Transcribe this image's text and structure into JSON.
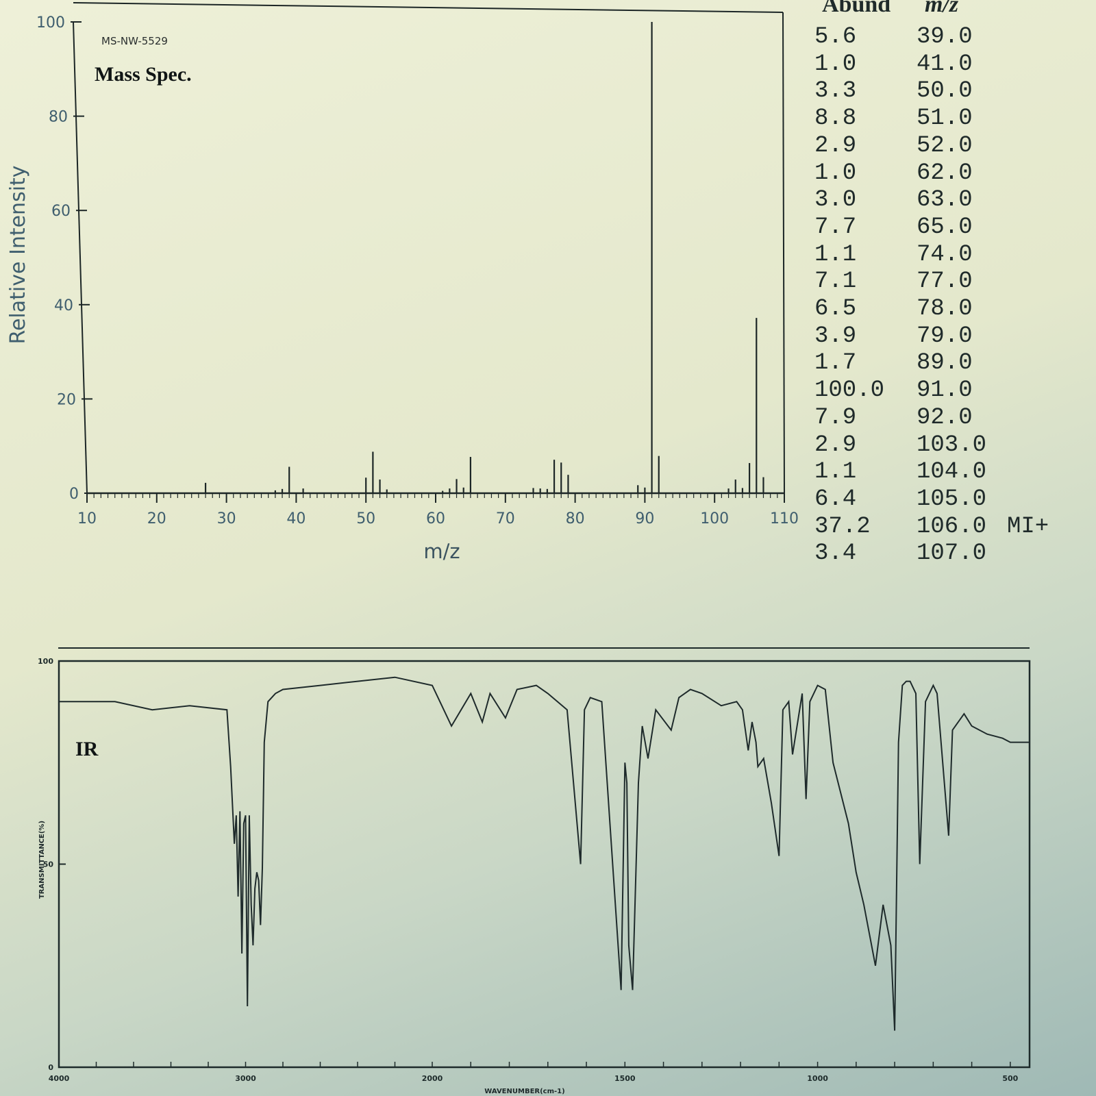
{
  "ms": {
    "sample_id": "MS-NW-5529",
    "title": "Mass Spec.",
    "table": {
      "header_abund": "Abund",
      "header_mz": "m/z",
      "rows": [
        {
          "abund": "5.6",
          "mz": "39.0",
          "note": ""
        },
        {
          "abund": "1.0",
          "mz": "41.0",
          "note": ""
        },
        {
          "abund": "3.3",
          "mz": "50.0",
          "note": ""
        },
        {
          "abund": "8.8",
          "mz": "51.0",
          "note": ""
        },
        {
          "abund": "2.9",
          "mz": "52.0",
          "note": ""
        },
        {
          "abund": "1.0",
          "mz": "62.0",
          "note": ""
        },
        {
          "abund": "3.0",
          "mz": "63.0",
          "note": ""
        },
        {
          "abund": "7.7",
          "mz": "65.0",
          "note": ""
        },
        {
          "abund": "1.1",
          "mz": "74.0",
          "note": ""
        },
        {
          "abund": "7.1",
          "mz": "77.0",
          "note": ""
        },
        {
          "abund": "6.5",
          "mz": "78.0",
          "note": ""
        },
        {
          "abund": "3.9",
          "mz": "79.0",
          "note": ""
        },
        {
          "abund": "1.7",
          "mz": "89.0",
          "note": ""
        },
        {
          "abund": "100.0",
          "mz": "91.0",
          "note": ""
        },
        {
          "abund": "7.9",
          "mz": "92.0",
          "note": ""
        },
        {
          "abund": "2.9",
          "mz": "103.0",
          "note": ""
        },
        {
          "abund": "1.1",
          "mz": "104.0",
          "note": ""
        },
        {
          "abund": "6.4",
          "mz": "105.0",
          "note": ""
        },
        {
          "abund": "37.2",
          "mz": "106.0",
          "note": "MI+"
        },
        {
          "abund": "3.4",
          "mz": "107.0",
          "note": ""
        }
      ]
    }
  },
  "ir": {
    "title": "IR"
  },
  "chart_data": [
    {
      "type": "bar",
      "title": "Mass Spec.",
      "xlabel": "m/z",
      "ylabel": "Relative Intensity",
      "xlim": [
        10,
        110
      ],
      "ylim": [
        0,
        100
      ],
      "xticks": [
        10,
        20,
        30,
        40,
        50,
        60,
        70,
        80,
        90,
        100,
        110
      ],
      "yticks": [
        0,
        20,
        40,
        60,
        80,
        100
      ],
      "grid": false,
      "x": [
        27,
        37,
        38,
        39,
        41,
        50,
        51,
        52,
        53,
        61,
        62,
        63,
        64,
        65,
        74,
        75,
        76,
        77,
        78,
        79,
        89,
        90,
        91,
        92,
        102,
        103,
        104,
        105,
        106,
        107
      ],
      "values": [
        2.2,
        0.6,
        0.9,
        5.6,
        1.0,
        3.3,
        8.8,
        2.9,
        0.8,
        0.5,
        1.0,
        3.0,
        1.2,
        7.7,
        1.1,
        1.0,
        0.9,
        7.1,
        6.5,
        3.9,
        1.7,
        1.2,
        100.0,
        7.9,
        1.0,
        2.9,
        1.1,
        6.4,
        37.2,
        3.4
      ]
    },
    {
      "type": "line",
      "title": "IR",
      "xlabel": "WAVENUMBER(cm-1)",
      "ylabel": "TRANSMITTANCE(%)",
      "xlim": [
        4000,
        450
      ],
      "ylim": [
        0,
        100
      ],
      "xticks": [
        "4000",
        "3000",
        "2000",
        "1500",
        "1000",
        "500"
      ],
      "yticks": [
        "0",
        "50",
        "100"
      ],
      "grid": false,
      "series": [
        {
          "x": [
            4000,
            3700,
            3500,
            3300,
            3100,
            3080,
            3060,
            3050,
            3040,
            3030,
            3020,
            3010,
            3000,
            2990,
            2980,
            2970,
            2960,
            2950,
            2940,
            2930,
            2920,
            2910,
            2900,
            2880,
            2860,
            2840,
            2800,
            2600,
            2400,
            2200,
            2000,
            1950,
            1900,
            1870,
            1850,
            1810,
            1780,
            1730,
            1700,
            1650,
            1615,
            1605,
            1590,
            1560,
            1510,
            1500,
            1495,
            1490,
            1480,
            1465,
            1455,
            1440,
            1420,
            1380,
            1360,
            1330,
            1300,
            1250,
            1210,
            1195,
            1180,
            1170,
            1160,
            1155,
            1140,
            1120,
            1100,
            1090,
            1075,
            1065,
            1040,
            1030,
            1020,
            1000,
            980,
            960,
            920,
            900,
            880,
            850,
            830,
            810,
            800,
            790,
            780,
            770,
            760,
            745,
            735,
            720,
            700,
            690,
            660,
            650,
            620,
            600,
            560,
            520,
            500,
            460,
            450
          ],
          "values": [
            90,
            90,
            88,
            89,
            88,
            74,
            55,
            62,
            42,
            63,
            28,
            60,
            62,
            15,
            62,
            40,
            30,
            44,
            48,
            46,
            35,
            49,
            80,
            90,
            91,
            92,
            93,
            94,
            95,
            96,
            94,
            84,
            92,
            85,
            92,
            86,
            93,
            94,
            92,
            88,
            50,
            88,
            91,
            90,
            19,
            75,
            70,
            30,
            19,
            70,
            84,
            76,
            88,
            83,
            91,
            93,
            92,
            89,
            90,
            88,
            78,
            85,
            80,
            74,
            76,
            65,
            52,
            88,
            90,
            77,
            92,
            66,
            90,
            94,
            93,
            75,
            60,
            48,
            40,
            25,
            40,
            30,
            9,
            80,
            94,
            95,
            95,
            92,
            50,
            90,
            94,
            92,
            57,
            83,
            87,
            84,
            82,
            81,
            80,
            80,
            80
          ]
        }
      ]
    }
  ]
}
